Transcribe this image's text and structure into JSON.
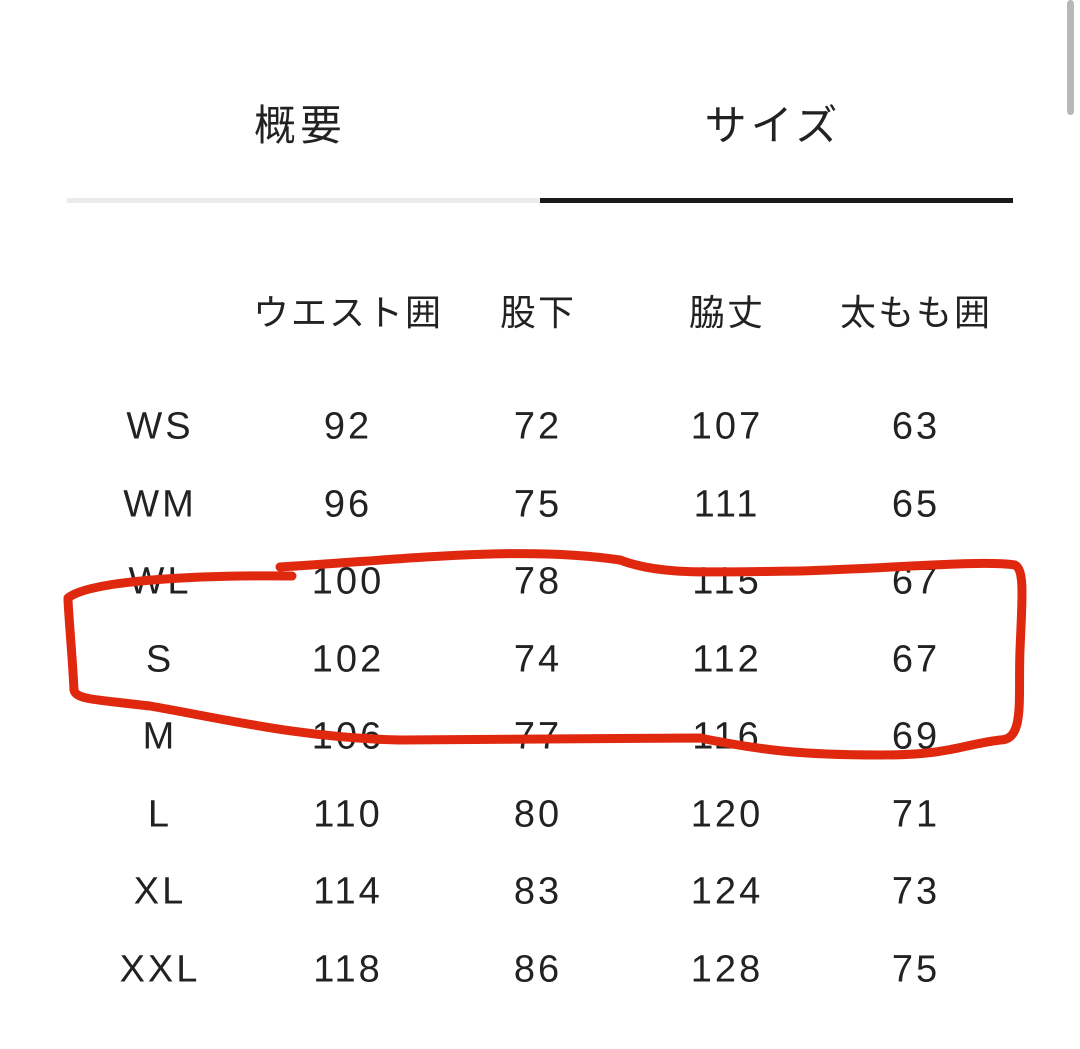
{
  "tabs": [
    {
      "label": "概要",
      "active": false
    },
    {
      "label": "サイズ",
      "active": true
    }
  ],
  "table": {
    "headers": [
      "",
      "ウエスト囲",
      "股下",
      "脇丈",
      "太もも囲"
    ],
    "rows": [
      [
        "WS",
        "92",
        "72",
        "107",
        "63"
      ],
      [
        "WM",
        "96",
        "75",
        "111",
        "65"
      ],
      [
        "WL",
        "100",
        "78",
        "115",
        "67"
      ],
      [
        "S",
        "102",
        "74",
        "112",
        "67"
      ],
      [
        "M",
        "106",
        "77",
        "116",
        "69"
      ],
      [
        "L",
        "110",
        "80",
        "120",
        "71"
      ],
      [
        "XL",
        "114",
        "83",
        "124",
        "73"
      ],
      [
        "XXL",
        "118",
        "86",
        "128",
        "75"
      ]
    ]
  },
  "annotation": {
    "color": "#e0280f",
    "highlighted_rows": [
      "WL",
      "S",
      "M"
    ]
  },
  "colors": {
    "active_tab_line": "#1a1a1a",
    "inactive_tab_line": "#ebebeb"
  }
}
